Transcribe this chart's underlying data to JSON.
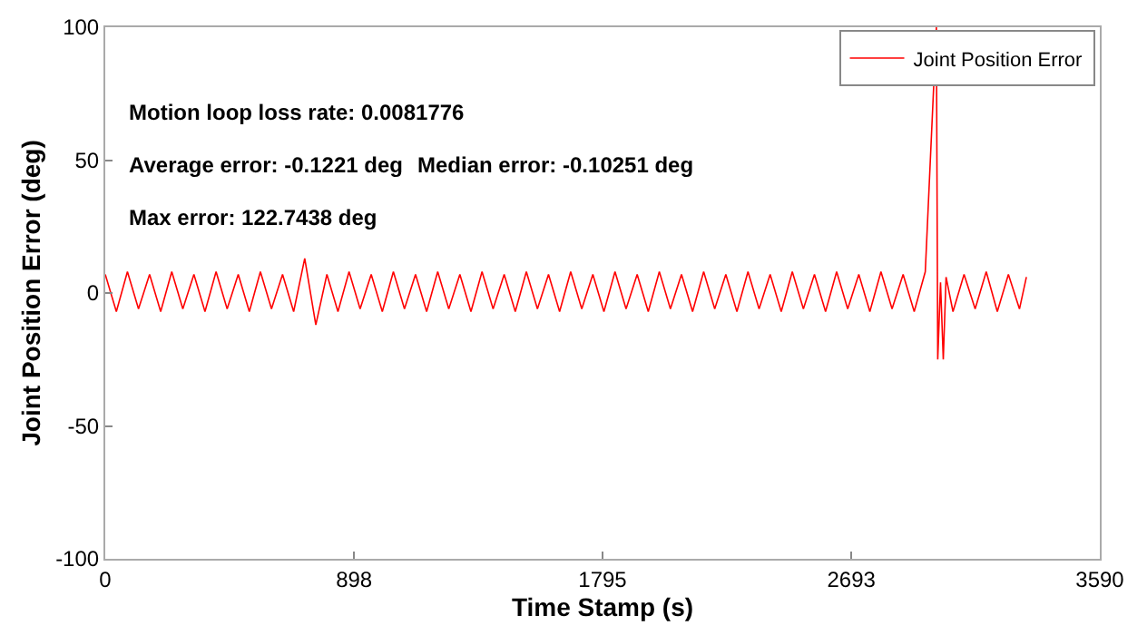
{
  "chart_data": {
    "type": "line",
    "xlabel": "Time Stamp (s)",
    "ylabel": "Joint Position Error (deg)",
    "annotations": [
      "Motion loop loss rate: 0.0081776",
      "Average error: -0.1221 deg",
      "Median error: -0.10251 deg",
      "Max error: 122.7438 deg"
    ],
    "xlim": [
      0,
      3590
    ],
    "xticks": [
      0,
      898,
      1795,
      2693,
      3590
    ],
    "ylim": [
      -100,
      100
    ],
    "yticks": [
      -100,
      -50,
      0,
      50,
      100
    ],
    "legend": "top right",
    "marker": "none",
    "line_style": "solid",
    "x": [
      0,
      40,
      80,
      120,
      160,
      200,
      240,
      280,
      320,
      360,
      400,
      440,
      480,
      520,
      560,
      600,
      640,
      680,
      720,
      760,
      800,
      840,
      880,
      920,
      960,
      1000,
      1040,
      1080,
      1120,
      1160,
      1200,
      1240,
      1280,
      1320,
      1360,
      1400,
      1440,
      1480,
      1520,
      1560,
      1600,
      1640,
      1680,
      1720,
      1760,
      1800,
      1840,
      1880,
      1920,
      1960,
      2000,
      2040,
      2080,
      2120,
      2160,
      2200,
      2240,
      2280,
      2320,
      2360,
      2400,
      2440,
      2480,
      2520,
      2560,
      2600,
      2640,
      2680,
      2720,
      2760,
      2800,
      2840,
      2880,
      2920,
      2960,
      3000,
      3005,
      3015,
      3025,
      3035,
      3060,
      3100,
      3140,
      3180,
      3220,
      3260,
      3300,
      3325
    ],
    "series": [
      {
        "name": "Joint Position Error",
        "color": "#ff0000",
        "values": [
          7,
          -7,
          8,
          -6,
          7,
          -7,
          8,
          -6,
          7,
          -7,
          8,
          -6,
          7,
          -7,
          8,
          -6,
          7,
          -7,
          13,
          -12,
          7,
          -7,
          8,
          -6,
          7,
          -7,
          8,
          -6,
          7,
          -7,
          8,
          -6,
          7,
          -7,
          8,
          -6,
          7,
          -7,
          8,
          -6,
          7,
          -7,
          8,
          -6,
          7,
          -7,
          8,
          -6,
          7,
          -7,
          8,
          -6,
          7,
          -7,
          8,
          -6,
          7,
          -7,
          8,
          -6,
          7,
          -7,
          8,
          -6,
          7,
          -7,
          8,
          -6,
          7,
          -7,
          8,
          -6,
          7,
          -7,
          8,
          100,
          -25,
          4,
          -25,
          6,
          -7,
          7,
          -6,
          8,
          -7,
          7,
          -6,
          6
        ]
      }
    ]
  }
}
